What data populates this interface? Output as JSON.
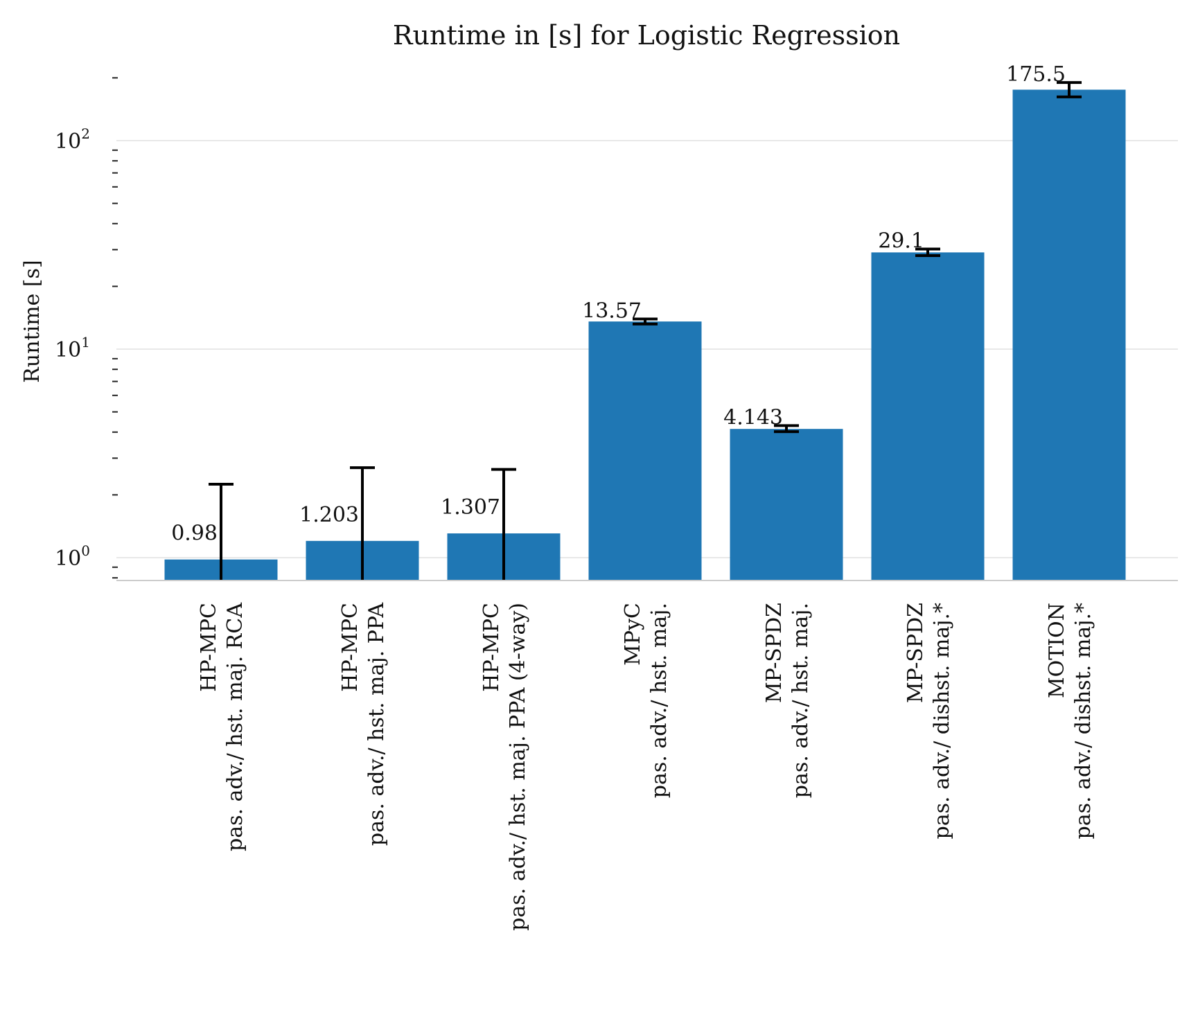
{
  "chart_data": {
    "type": "bar",
    "title": "Runtime in [s] for Logistic Regression",
    "xlabel": "",
    "ylabel": "Runtime [s]",
    "yscale": "log",
    "ylim": [
      0.8,
      250
    ],
    "grid": "horizontal",
    "bar_color": "#1f77b4",
    "yticks": [
      {
        "value": 1,
        "base": "10",
        "exp": "0"
      },
      {
        "value": 10,
        "base": "10",
        "exp": "1"
      },
      {
        "value": 100,
        "base": "10",
        "exp": "2"
      }
    ],
    "categories": [
      {
        "line1": "HP-MPC",
        "line2": "pas. adv./ hst. maj. RCA"
      },
      {
        "line1": "HP-MPC",
        "line2": "pas. adv./ hst. maj. PPA"
      },
      {
        "line1": "HP-MPC",
        "line2": "pas. adv./ hst. maj. PPA (4-way)"
      },
      {
        "line1": "MPyC",
        "line2": "pas. adv./ hst. maj."
      },
      {
        "line1": "MP-SPDZ",
        "line2": "pas. adv./ hst. maj."
      },
      {
        "line1": "MP-SPDZ",
        "line2": "pas. adv./ dishst. maj.*"
      },
      {
        "line1": "MOTION",
        "line2": "pas. adv./ dishst. maj.*"
      }
    ],
    "values": [
      0.98,
      1.203,
      1.307,
      13.57,
      4.143,
      29.1,
      175.5
    ],
    "labels": [
      "0.98",
      "1.203",
      "1.307",
      "13.57",
      "4.143",
      "29.1",
      "175.5"
    ],
    "error_low": [
      0.7,
      0.7,
      0.7,
      13.2,
      4.02,
      28.1,
      162
    ],
    "error_high": [
      2.25,
      2.7,
      2.65,
      13.95,
      4.3,
      30.2,
      190
    ]
  }
}
